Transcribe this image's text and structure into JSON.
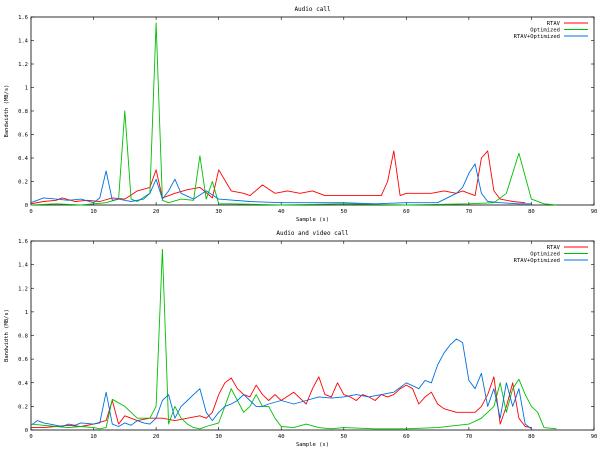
{
  "chart_data": [
    {
      "type": "line",
      "title": "Audio call",
      "xlabel": "Sample (s)",
      "ylabel": "Bandwidth (MB/s)",
      "xlim": [
        0,
        90
      ],
      "ylim": [
        0,
        1.6
      ],
      "xticks": [
        0,
        10,
        20,
        30,
        40,
        50,
        60,
        70,
        80,
        90
      ],
      "xtick_labels": [
        "0",
        "10",
        "20",
        "30",
        "40",
        "50",
        "60",
        "70",
        "80",
        "90"
      ],
      "yticks": [
        0,
        0.2,
        0.4,
        0.6,
        0.8,
        1,
        1.2,
        1.4,
        1.6
      ],
      "ytick_labels": [
        "0",
        "0.2",
        "0.4",
        "0.6",
        "0.8",
        "1",
        "1.2",
        "1.4",
        "1.6"
      ],
      "grid": false,
      "legend_position": "top-right",
      "series": [
        {
          "name": "RTAV",
          "color": "#ff0000",
          "x": [
            0,
            2,
            4,
            5,
            7,
            9,
            11,
            13,
            15,
            17,
            19,
            20,
            21,
            23,
            25,
            27,
            29,
            30,
            32,
            34,
            35,
            37,
            39,
            41,
            43,
            45,
            47,
            50,
            53,
            56,
            57,
            58,
            59,
            60,
            62,
            64,
            66,
            68,
            69,
            70,
            71,
            72,
            73,
            74,
            75,
            77,
            79
          ],
          "y": [
            0.01,
            0.03,
            0.04,
            0.06,
            0.03,
            0.04,
            0.03,
            0.06,
            0.05,
            0.12,
            0.15,
            0.3,
            0.06,
            0.1,
            0.13,
            0.15,
            0.06,
            0.3,
            0.12,
            0.1,
            0.08,
            0.17,
            0.1,
            0.12,
            0.1,
            0.12,
            0.08,
            0.08,
            0.08,
            0.08,
            0.2,
            0.46,
            0.08,
            0.1,
            0.1,
            0.1,
            0.12,
            0.1,
            0.12,
            0.1,
            0.08,
            0.4,
            0.46,
            0.12,
            0.05,
            0.03,
            0.02
          ]
        },
        {
          "name": "Optimized",
          "color": "#00c000",
          "x": [
            0,
            4,
            8,
            10,
            12,
            14,
            15,
            16,
            17,
            19,
            20,
            21,
            22,
            24,
            26,
            27,
            28,
            29,
            30,
            32,
            40,
            50,
            60,
            70,
            74,
            76,
            78,
            80,
            82,
            84
          ],
          "y": [
            0,
            0.01,
            0,
            0.01,
            0.02,
            0.05,
            0.8,
            0.05,
            0.03,
            0.1,
            1.55,
            0.04,
            0.02,
            0.05,
            0.04,
            0.42,
            0.05,
            0.2,
            0.01,
            0.01,
            0,
            0.01,
            0,
            0.01,
            0.02,
            0.1,
            0.44,
            0.05,
            0.01,
            0
          ]
        },
        {
          "name": "RTAV+Optimized",
          "color": "#0070e0",
          "x": [
            0,
            2,
            4,
            6,
            8,
            10,
            11,
            12,
            13,
            14,
            16,
            18,
            19,
            20,
            21,
            22,
            23,
            24,
            26,
            28,
            30,
            35,
            40,
            50,
            55,
            60,
            65,
            68,
            69,
            70,
            71,
            72,
            73,
            75,
            78,
            80
          ],
          "y": [
            0.02,
            0.06,
            0.05,
            0.04,
            0.05,
            0.02,
            0.06,
            0.29,
            0.04,
            0.05,
            0.03,
            0.05,
            0.1,
            0.22,
            0.05,
            0.12,
            0.22,
            0.1,
            0.05,
            0.12,
            0.05,
            0.03,
            0.02,
            0.02,
            0.01,
            0.02,
            0.02,
            0.1,
            0.15,
            0.27,
            0.35,
            0.1,
            0.03,
            0.02,
            0.01,
            0.01
          ]
        }
      ]
    },
    {
      "type": "line",
      "title": "Audio and video call",
      "xlabel": "Sample (s)",
      "ylabel": "Bandwidth (MB/s)",
      "xlim": [
        0,
        90
      ],
      "ylim": [
        0,
        1.6
      ],
      "xticks": [
        0,
        10,
        20,
        30,
        40,
        50,
        60,
        70,
        80,
        90
      ],
      "xtick_labels": [
        "0",
        "10",
        "20",
        "30",
        "40",
        "50",
        "60",
        "70",
        "80",
        "90"
      ],
      "yticks": [
        0,
        0.2,
        0.4,
        0.6,
        0.8,
        1,
        1.2,
        1.4,
        1.6
      ],
      "ytick_labels": [
        "0",
        "0.2",
        "0.4",
        "0.6",
        "0.8",
        "1",
        "1.2",
        "1.4",
        "1.6"
      ],
      "grid": false,
      "legend_position": "top-right",
      "series": [
        {
          "name": "RTAV",
          "color": "#ff0000",
          "x": [
            0,
            2,
            4,
            6,
            8,
            10,
            12,
            13,
            14,
            15,
            17,
            19,
            21,
            23,
            25,
            27,
            28,
            29,
            30,
            31,
            32,
            33,
            34,
            35,
            36,
            37,
            38,
            39,
            40,
            42,
            44,
            45,
            46,
            47,
            48,
            49,
            50,
            51,
            52,
            53,
            54,
            55,
            56,
            57,
            58,
            59,
            60,
            61,
            62,
            63,
            64,
            65,
            66,
            68,
            70,
            71,
            72,
            73,
            74,
            75,
            76,
            77,
            78,
            79,
            80
          ],
          "y": [
            0.02,
            0.02,
            0.03,
            0.04,
            0.03,
            0.05,
            0.08,
            0.25,
            0.05,
            0.12,
            0.08,
            0.1,
            0.1,
            0.08,
            0.1,
            0.12,
            0.1,
            0.15,
            0.3,
            0.4,
            0.44,
            0.35,
            0.3,
            0.28,
            0.38,
            0.3,
            0.25,
            0.3,
            0.25,
            0.32,
            0.22,
            0.35,
            0.45,
            0.3,
            0.28,
            0.4,
            0.3,
            0.28,
            0.25,
            0.3,
            0.28,
            0.25,
            0.3,
            0.28,
            0.3,
            0.35,
            0.38,
            0.35,
            0.22,
            0.28,
            0.32,
            0.22,
            0.18,
            0.15,
            0.15,
            0.15,
            0.2,
            0.3,
            0.45,
            0.05,
            0.2,
            0.4,
            0.1,
            0.03,
            0.02
          ]
        },
        {
          "name": "Optimized",
          "color": "#00c000",
          "x": [
            0,
            2,
            4,
            6,
            8,
            10,
            11,
            12,
            13,
            15,
            17,
            19,
            20,
            21,
            22,
            23,
            24,
            25,
            26,
            27,
            28,
            30,
            31,
            32,
            33,
            34,
            35,
            36,
            37,
            38,
            39,
            40,
            42,
            44,
            46,
            48,
            50,
            55,
            60,
            65,
            70,
            72,
            74,
            75,
            76,
            77,
            78,
            79,
            80,
            81,
            82,
            84
          ],
          "y": [
            0.05,
            0.04,
            0.03,
            0.02,
            0.03,
            0.02,
            0.01,
            0.02,
            0.26,
            0.2,
            0.1,
            0.1,
            0.2,
            1.53,
            0.05,
            0.2,
            0.1,
            0.05,
            0.02,
            0.01,
            0.03,
            0.06,
            0.2,
            0.35,
            0.25,
            0.15,
            0.2,
            0.3,
            0.2,
            0.2,
            0.1,
            0.03,
            0.02,
            0.05,
            0.02,
            0.01,
            0.02,
            0.01,
            0.01,
            0.02,
            0.05,
            0.1,
            0.2,
            0.4,
            0.15,
            0.35,
            0.43,
            0.3,
            0.2,
            0.15,
            0.02,
            0.01
          ]
        },
        {
          "name": "RTAV+Optimized",
          "color": "#0070e0",
          "x": [
            0,
            1,
            2,
            3,
            4,
            5,
            6,
            7,
            8,
            10,
            11,
            12,
            13,
            14,
            15,
            16,
            17,
            18,
            19,
            20,
            21,
            22,
            23,
            24,
            25,
            26,
            27,
            28,
            29,
            30,
            31,
            32,
            33,
            34,
            35,
            36,
            37,
            38,
            40,
            42,
            44,
            46,
            48,
            50,
            52,
            54,
            56,
            58,
            60,
            62,
            63,
            64,
            65,
            66,
            67,
            68,
            69,
            70,
            71,
            72,
            73,
            74,
            75,
            76,
            77,
            78,
            79,
            80
          ],
          "y": [
            0.04,
            0.08,
            0.06,
            0.05,
            0.04,
            0.03,
            0.05,
            0.04,
            0.06,
            0.05,
            0.06,
            0.32,
            0.05,
            0.03,
            0.06,
            0.04,
            0.08,
            0.06,
            0.05,
            0.1,
            0.25,
            0.3,
            0.1,
            0.2,
            0.25,
            0.3,
            0.35,
            0.15,
            0.08,
            0.15,
            0.2,
            0.22,
            0.25,
            0.3,
            0.25,
            0.2,
            0.2,
            0.22,
            0.25,
            0.22,
            0.25,
            0.28,
            0.27,
            0.28,
            0.3,
            0.28,
            0.3,
            0.32,
            0.4,
            0.35,
            0.42,
            0.4,
            0.55,
            0.65,
            0.72,
            0.77,
            0.74,
            0.42,
            0.35,
            0.48,
            0.2,
            0.35,
            0.1,
            0.4,
            0.2,
            0.35,
            0.05,
            0.01
          ]
        }
      ]
    }
  ]
}
